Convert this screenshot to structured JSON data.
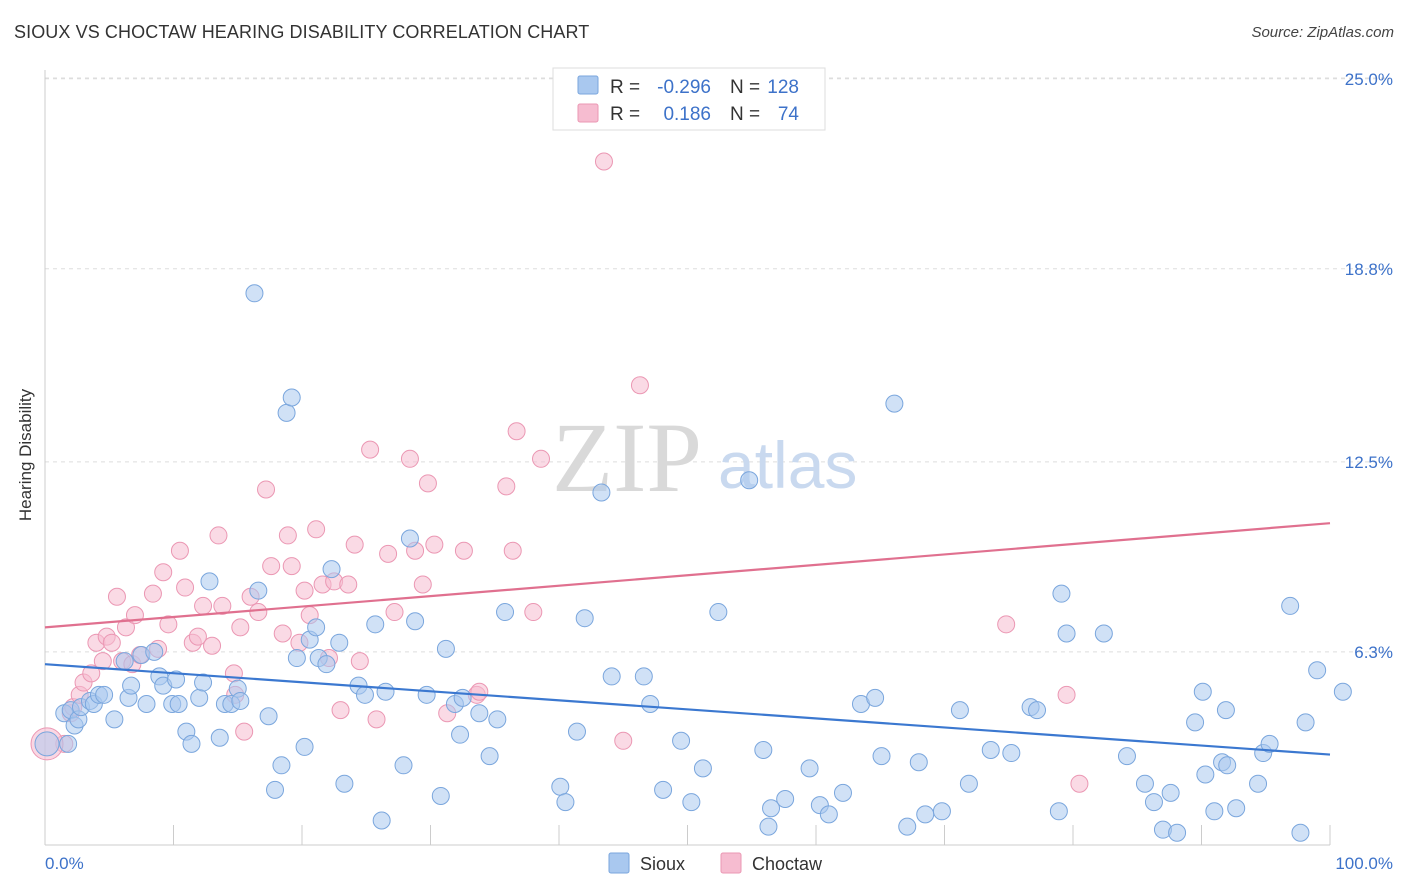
{
  "header": {
    "title": "SIOUX VS CHOCTAW HEARING DISABILITY CORRELATION CHART",
    "source": "Source: ZipAtlas.com"
  },
  "watermark": {
    "part1": "ZIP",
    "part2": "atlas"
  },
  "legend": {
    "sioux": {
      "r_label": "R =",
      "r_value": "-0.296",
      "n_label": "N =",
      "n_value": "128"
    },
    "choctaw": {
      "r_label": "R =",
      "r_value": "0.186",
      "n_label": "N =",
      "n_value": "74"
    }
  },
  "colors": {
    "sioux_fill": "#a9c8ef",
    "sioux_stroke": "#7aa6dd",
    "sioux_line": "#3b78d0",
    "choctaw_fill": "#f6bcd0",
    "choctaw_stroke": "#eb97b3",
    "choctaw_line": "#e0708f",
    "tick_label": "#3d72c9",
    "grid": "#dddddd"
  },
  "chart_data": {
    "type": "scatter",
    "title": "SIOUX VS CHOCTAW HEARING DISABILITY CORRELATION CHART",
    "xlabel": "",
    "ylabel": "Hearing Disability",
    "x_tick_labels": [
      "0.0%",
      "100.0%"
    ],
    "y_tick_labels": [
      "6.3%",
      "12.5%",
      "18.8%",
      "25.0%"
    ],
    "y_ticks": [
      6.3,
      12.5,
      18.8,
      25.0
    ],
    "xlim": [
      0,
      100
    ],
    "ylim": [
      0,
      25.8
    ],
    "grid": true,
    "legend_position": "top-center",
    "series": [
      {
        "name": "Sioux",
        "r": -0.296,
        "n": 128,
        "trend": {
          "x": [
            0,
            100
          ],
          "y": [
            5.9,
            2.95
          ]
        },
        "points": [
          [
            1.5,
            4.3
          ],
          [
            1.8,
            3.3
          ],
          [
            2.0,
            4.4
          ],
          [
            2.3,
            3.9
          ],
          [
            2.6,
            4.1
          ],
          [
            2.8,
            4.5
          ],
          [
            3.5,
            4.7
          ],
          [
            3.8,
            4.6
          ],
          [
            4.2,
            4.9
          ],
          [
            4.6,
            4.9
          ],
          [
            5.4,
            4.1
          ],
          [
            6.2,
            6.0
          ],
          [
            6.5,
            4.8
          ],
          [
            6.7,
            5.2
          ],
          [
            7.5,
            6.2
          ],
          [
            7.9,
            4.6
          ],
          [
            8.5,
            6.3
          ],
          [
            8.9,
            5.5
          ],
          [
            9.2,
            5.2
          ],
          [
            9.9,
            4.6
          ],
          [
            10.2,
            5.4
          ],
          [
            10.4,
            4.6
          ],
          [
            11.0,
            3.7
          ],
          [
            11.4,
            3.3
          ],
          [
            12.0,
            4.8
          ],
          [
            12.3,
            5.3
          ],
          [
            12.8,
            8.6
          ],
          [
            13.6,
            3.5
          ],
          [
            14.0,
            4.6
          ],
          [
            14.5,
            4.6
          ],
          [
            15.0,
            5.1
          ],
          [
            15.2,
            4.7
          ],
          [
            16.3,
            18.0
          ],
          [
            16.6,
            8.3
          ],
          [
            17.4,
            4.2
          ],
          [
            17.9,
            1.8
          ],
          [
            18.4,
            2.6
          ],
          [
            18.8,
            14.1
          ],
          [
            19.2,
            14.6
          ],
          [
            19.6,
            6.1
          ],
          [
            20.2,
            3.2
          ],
          [
            20.6,
            6.7
          ],
          [
            21.1,
            7.1
          ],
          [
            21.3,
            6.1
          ],
          [
            21.9,
            5.9
          ],
          [
            22.3,
            9.0
          ],
          [
            22.9,
            6.6
          ],
          [
            23.3,
            2.0
          ],
          [
            24.4,
            5.2
          ],
          [
            24.9,
            4.9
          ],
          [
            25.7,
            7.2
          ],
          [
            26.2,
            0.8
          ],
          [
            26.5,
            5.0
          ],
          [
            27.9,
            2.6
          ],
          [
            28.4,
            10.0
          ],
          [
            28.8,
            7.3
          ],
          [
            29.7,
            4.9
          ],
          [
            30.8,
            1.6
          ],
          [
            31.2,
            6.4
          ],
          [
            31.9,
            4.6
          ],
          [
            32.3,
            3.6
          ],
          [
            32.5,
            4.8
          ],
          [
            33.8,
            4.3
          ],
          [
            34.6,
            2.9
          ],
          [
            35.2,
            4.1
          ],
          [
            35.8,
            7.6
          ],
          [
            40.1,
            1.9
          ],
          [
            40.5,
            1.4
          ],
          [
            41.4,
            3.7
          ],
          [
            42.0,
            7.4
          ],
          [
            43.3,
            11.5
          ],
          [
            44.1,
            5.5
          ],
          [
            46.6,
            5.5
          ],
          [
            47.1,
            4.6
          ],
          [
            48.1,
            1.8
          ],
          [
            49.5,
            3.4
          ],
          [
            50.3,
            1.4
          ],
          [
            51.2,
            2.5
          ],
          [
            52.4,
            7.6
          ],
          [
            54.8,
            11.9
          ],
          [
            55.9,
            3.1
          ],
          [
            56.3,
            0.6
          ],
          [
            56.5,
            1.2
          ],
          [
            57.6,
            1.5
          ],
          [
            59.5,
            2.5
          ],
          [
            60.3,
            1.3
          ],
          [
            61.0,
            1.0
          ],
          [
            62.1,
            1.7
          ],
          [
            63.5,
            4.6
          ],
          [
            64.6,
            4.8
          ],
          [
            65.1,
            2.9
          ],
          [
            66.1,
            14.4
          ],
          [
            67.1,
            0.6
          ],
          [
            68.0,
            2.7
          ],
          [
            68.5,
            1.0
          ],
          [
            69.8,
            1.1
          ],
          [
            71.2,
            4.4
          ],
          [
            71.9,
            2.0
          ],
          [
            73.6,
            3.1
          ],
          [
            75.2,
            3.0
          ],
          [
            76.7,
            4.5
          ],
          [
            77.2,
            4.4
          ],
          [
            78.9,
            1.1
          ],
          [
            79.1,
            8.2
          ],
          [
            79.5,
            6.9
          ],
          [
            82.4,
            6.9
          ],
          [
            84.2,
            2.9
          ],
          [
            85.6,
            2.0
          ],
          [
            86.3,
            1.4
          ],
          [
            87.0,
            0.5
          ],
          [
            87.6,
            1.7
          ],
          [
            88.1,
            0.4
          ],
          [
            89.5,
            4.0
          ],
          [
            90.1,
            5.0
          ],
          [
            90.3,
            2.3
          ],
          [
            91.0,
            1.1
          ],
          [
            91.6,
            2.7
          ],
          [
            91.9,
            4.4
          ],
          [
            92.0,
            2.6
          ],
          [
            92.7,
            1.2
          ],
          [
            94.4,
            2.0
          ],
          [
            94.8,
            3.0
          ],
          [
            95.3,
            3.3
          ],
          [
            96.9,
            7.8
          ],
          [
            97.7,
            0.4
          ],
          [
            98.1,
            4.0
          ],
          [
            99.0,
            5.7
          ],
          [
            101.0,
            5.0
          ]
        ]
      },
      {
        "name": "Choctaw",
        "r": 0.186,
        "n": 74,
        "trend": {
          "x": [
            0,
            100
          ],
          "y": [
            7.1,
            10.5
          ]
        },
        "points": [
          [
            1.5,
            3.3
          ],
          [
            2.0,
            4.3
          ],
          [
            2.2,
            4.5
          ],
          [
            2.7,
            4.9
          ],
          [
            3.0,
            5.3
          ],
          [
            3.6,
            5.6
          ],
          [
            4.0,
            6.6
          ],
          [
            4.5,
            6.0
          ],
          [
            4.8,
            6.8
          ],
          [
            5.2,
            6.6
          ],
          [
            5.6,
            8.1
          ],
          [
            6.0,
            6.0
          ],
          [
            6.3,
            7.1
          ],
          [
            6.8,
            5.9
          ],
          [
            7.0,
            7.5
          ],
          [
            7.4,
            6.2
          ],
          [
            8.4,
            8.2
          ],
          [
            8.8,
            6.4
          ],
          [
            9.2,
            8.9
          ],
          [
            9.6,
            7.2
          ],
          [
            10.5,
            9.6
          ],
          [
            10.9,
            8.4
          ],
          [
            11.5,
            6.6
          ],
          [
            11.9,
            6.8
          ],
          [
            12.3,
            7.8
          ],
          [
            13.0,
            6.5
          ],
          [
            13.5,
            10.1
          ],
          [
            13.8,
            7.8
          ],
          [
            14.7,
            5.6
          ],
          [
            14.8,
            4.9
          ],
          [
            15.2,
            7.1
          ],
          [
            15.5,
            3.7
          ],
          [
            16.0,
            8.1
          ],
          [
            16.6,
            7.6
          ],
          [
            17.2,
            11.6
          ],
          [
            17.6,
            9.1
          ],
          [
            18.5,
            6.9
          ],
          [
            18.9,
            10.1
          ],
          [
            19.2,
            9.1
          ],
          [
            19.8,
            6.6
          ],
          [
            20.2,
            8.3
          ],
          [
            20.6,
            7.5
          ],
          [
            21.1,
            10.3
          ],
          [
            21.6,
            8.5
          ],
          [
            22.1,
            6.1
          ],
          [
            22.5,
            8.6
          ],
          [
            23.0,
            4.4
          ],
          [
            23.6,
            8.5
          ],
          [
            24.1,
            9.8
          ],
          [
            24.5,
            6.0
          ],
          [
            25.3,
            12.9
          ],
          [
            25.8,
            4.1
          ],
          [
            26.7,
            9.5
          ],
          [
            27.2,
            7.6
          ],
          [
            28.4,
            12.6
          ],
          [
            28.8,
            9.6
          ],
          [
            29.4,
            8.5
          ],
          [
            29.8,
            11.8
          ],
          [
            30.3,
            9.8
          ],
          [
            31.3,
            4.3
          ],
          [
            32.6,
            9.6
          ],
          [
            33.6,
            4.9
          ],
          [
            33.8,
            5.0
          ],
          [
            35.9,
            11.7
          ],
          [
            36.4,
            9.6
          ],
          [
            36.7,
            13.5
          ],
          [
            38.0,
            7.6
          ],
          [
            38.6,
            12.6
          ],
          [
            43.5,
            22.3
          ],
          [
            45.0,
            3.4
          ],
          [
            46.3,
            15.0
          ],
          [
            74.8,
            7.2
          ],
          [
            79.5,
            4.9
          ],
          [
            80.5,
            2.0
          ]
        ]
      }
    ]
  },
  "bottom_legend": {
    "sioux": "Sioux",
    "choctaw": "Choctaw"
  }
}
